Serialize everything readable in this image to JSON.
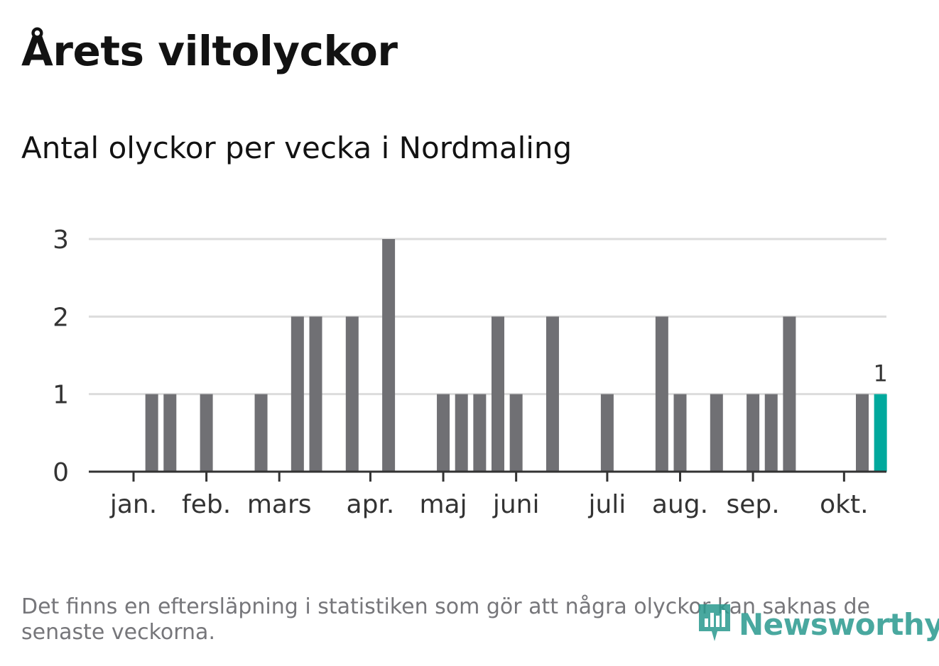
{
  "title": "Årets viltolyckor",
  "subtitle": "Antal olyckor per vecka i Nordmaling",
  "footnote": "Det finns en eftersläpning i statistiken som gör att några olyckor kan saknas de senaste veckorna.",
  "logo": {
    "text": "Newsworthy",
    "icon": "bar-chart-logo-icon"
  },
  "colors": {
    "bar": "#707074",
    "highlight": "#00a99d",
    "grid": "#dcdcdc",
    "axis": "#333333",
    "text": "#333333"
  },
  "chart_data": {
    "type": "bar",
    "title": "Antal olyckor per vecka i Nordmaling",
    "xlabel": "",
    "ylabel": "",
    "ylim": [
      0,
      3
    ],
    "yticks": [
      0,
      1,
      2,
      3
    ],
    "grid": true,
    "weeks": [
      1,
      2,
      3,
      4,
      5,
      6,
      7,
      8,
      9,
      10,
      11,
      12,
      13,
      14,
      15,
      16,
      17,
      18,
      19,
      20,
      21,
      22,
      23,
      24,
      25,
      26,
      27,
      28,
      29,
      30,
      31,
      32,
      33,
      34,
      35,
      36,
      37,
      38,
      39,
      40,
      41,
      42
    ],
    "values": [
      0,
      1,
      1,
      0,
      1,
      0,
      0,
      1,
      0,
      2,
      2,
      0,
      2,
      0,
      3,
      0,
      0,
      1,
      1,
      1,
      2,
      1,
      0,
      2,
      0,
      0,
      1,
      0,
      0,
      2,
      1,
      0,
      1,
      0,
      1,
      1,
      2,
      0,
      0,
      0,
      1,
      1
    ],
    "highlight_week": 42,
    "highlight_label": "1",
    "month_labels": [
      {
        "label": "jan.",
        "week": 1
      },
      {
        "label": "feb.",
        "week": 5
      },
      {
        "label": "mars",
        "week": 9
      },
      {
        "label": "apr.",
        "week": 14
      },
      {
        "label": "maj",
        "week": 18
      },
      {
        "label": "juni",
        "week": 22
      },
      {
        "label": "juli",
        "week": 27
      },
      {
        "label": "aug.",
        "week": 31
      },
      {
        "label": "sep.",
        "week": 35
      },
      {
        "label": "okt.",
        "week": 40
      }
    ]
  }
}
